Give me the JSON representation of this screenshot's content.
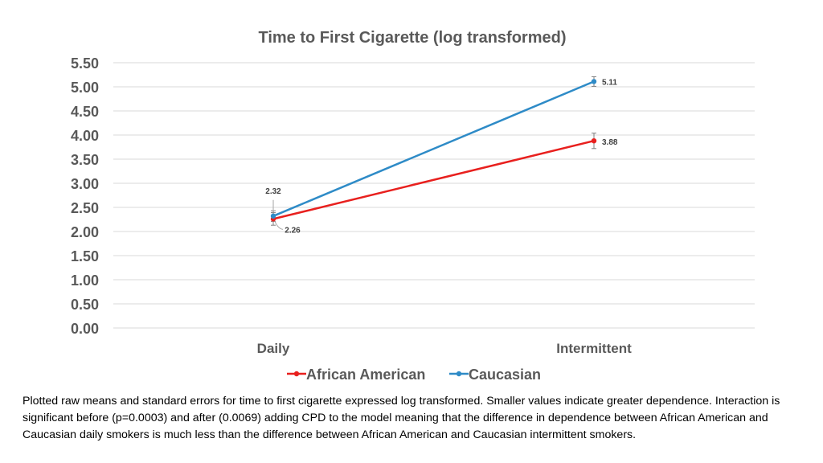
{
  "caption": "Plotted raw means and standard errors for time to first cigarette expressed log transformed.  Smaller values indicate greater dependence. Interaction is significant before (p=0.0003) and after (0.0069) adding CPD to the model meaning that the difference in dependence between African American and Caucasian daily smokers is much less than the difference between African American and Caucasian intermittent smokers.",
  "chart_data": {
    "type": "line",
    "title": "Time to First Cigarette (log transformed)",
    "xlabel": "",
    "ylabel": "",
    "categories": [
      "Daily",
      "Intermittent"
    ],
    "ylim": [
      0,
      5.5
    ],
    "yticks": [
      "0.00",
      "0.50",
      "1.00",
      "1.50",
      "2.00",
      "2.50",
      "3.00",
      "3.50",
      "4.00",
      "4.50",
      "5.00",
      "5.50"
    ],
    "grid": true,
    "legend_position": "bottom",
    "error_bars": true,
    "series": [
      {
        "name": "African American",
        "color": "#e8201e",
        "values": [
          2.26,
          3.88
        ],
        "errors": [
          0.13,
          0.16
        ],
        "labels": [
          "2.26",
          "3.88"
        ]
      },
      {
        "name": "Caucasian",
        "color": "#2e8bc7",
        "values": [
          2.32,
          5.11
        ],
        "errors": [
          0.11,
          0.1
        ],
        "labels": [
          "2.32",
          "5.11"
        ]
      }
    ]
  }
}
